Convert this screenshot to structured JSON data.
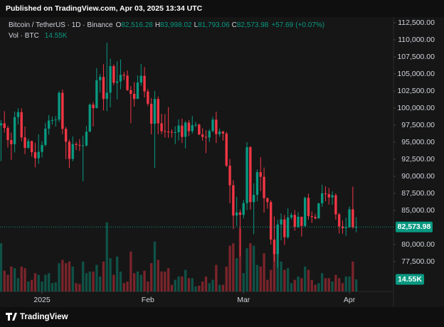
{
  "header": {
    "published": "Published on TradingView.com, Apr 03, 2025 13:34 UTC"
  },
  "footer": {
    "brand": "TradingView"
  },
  "chart_data": {
    "type": "candlestick",
    "legend": {
      "symbol": "Bitcoin / TetherUS · 1D · Binance",
      "fields": [
        {
          "key": "O",
          "value": 82516.28,
          "label": "82,516.28"
        },
        {
          "key": "H",
          "value": 83998.02,
          "label": "83,998.02"
        },
        {
          "key": "L",
          "value": 81793.06,
          "label": "81,793.06"
        },
        {
          "key": "C",
          "value": 82573.98,
          "label": "82,573.98"
        }
      ],
      "change": {
        "value": 57.69,
        "label": "+57.69"
      },
      "change_pct": {
        "value": 0.07,
        "label": "(+0.07%)"
      },
      "volume_title": "Vol · BTC"
    },
    "up_color": "#089981",
    "down_color": "#f23645",
    "xlim": [
      -0.3,
      114.9
    ],
    "xticks": [
      {
        "value": 12,
        "label": "2025"
      },
      {
        "value": 43,
        "label": "Feb"
      },
      {
        "value": 71,
        "label": "Mar"
      },
      {
        "value": 102,
        "label": "Apr"
      }
    ],
    "ylim": [
      73125,
      113333
    ],
    "yticks": [
      {
        "value": 112500,
        "label": "112,500.00"
      },
      {
        "value": 110000,
        "label": "110,000.00"
      },
      {
        "value": 107500,
        "label": "107,500.00"
      },
      {
        "value": 105000,
        "label": "105,000.00"
      },
      {
        "value": 102500,
        "label": "102,500.00"
      },
      {
        "value": 100000,
        "label": "100,000.00"
      },
      {
        "value": 97500,
        "label": "97,500.00"
      },
      {
        "value": 95000,
        "label": "95,000.00"
      },
      {
        "value": 92500,
        "label": "92,500.00"
      },
      {
        "value": 90000,
        "label": "90,000.00"
      },
      {
        "value": 87500,
        "label": "87,500.00"
      },
      {
        "value": 85000,
        "label": "85,000.00"
      },
      {
        "value": 80000,
        "label": "80,000.00"
      },
      {
        "value": 77500,
        "label": "77,500.00"
      }
    ],
    "vlim": [
      0,
      330
    ],
    "last_price": {
      "value": 82573.98,
      "label": "82,573.98"
    },
    "last_volume": {
      "value": 14.55,
      "label": "14.55K"
    },
    "open": [
      97461,
      97763,
      97086,
      95300,
      94700,
      98676,
      99400,
      95700,
      94160,
      95163,
      93530,
      92643,
      93576,
      94591,
      96984,
      98174,
      98236,
      98314,
      102235,
      96954,
      95060,
      92552,
      94726,
      94599,
      94511,
      94516,
      96534,
      100505,
      99987,
      104078,
      104557,
      101331,
      102260,
      106143,
      103706,
      103910,
      104870,
      104746,
      102620,
      102082,
      101335,
      103733,
      104722,
      102429,
      100635,
      97700,
      101328,
      97763,
      96612,
      96554,
      96506,
      96444,
      96462,
      97430,
      95778,
      97869,
      96608,
      97500,
      97569,
      96118,
      95780,
      95671,
      96644,
      98305,
      96181,
      96551,
      96258,
      91552,
      88680,
      84250,
      84708,
      84349,
      86064,
      94270,
      86220,
      87281,
      90606,
      89931,
      86801,
      86222,
      80734,
      78595,
      82932,
      83680,
      81066,
      83969,
      84343,
      82580,
      84075,
      82718,
      86854,
      84167,
      84043,
      83832,
      86054,
      87498,
      87391,
      86909,
      87232,
      84424,
      82648,
      82389,
      82550,
      85159,
      82516.28
    ],
    "high": [
      98233,
      99540,
      97400,
      96416,
      99487,
      99963,
      99963,
      97300,
      95525,
      95220,
      94903,
      96150,
      95150,
      97839,
      98976,
      98734,
      98813,
      102482,
      102724,
      97258,
      95382,
      95836,
      95050,
      95450,
      95940,
      97371,
      100681,
      100873,
      105865,
      104988,
      106422,
      109588,
      107240,
      106394,
      106850,
      107120,
      105286,
      105500,
      103222,
      103783,
      104800,
      106457,
      106012,
      102783,
      101456,
      102500,
      101700,
      99149,
      99120,
      100137,
      96880,
      97323,
      98345,
      98478,
      98119,
      98249,
      98826,
      97972,
      97732,
      97046,
      96753,
      96899,
      98711,
      99475,
      96980,
      96650,
      96500,
      92540,
      89414,
      87000,
      85120,
      86558,
      95000,
      94416,
      88967,
      91000,
      92810,
      91283,
      86897,
      86500,
      84123,
      83617,
      84539,
      84336,
      85309,
      84672,
      85051,
      84756,
      84075,
      87021,
      87453,
      84850,
      84513,
      86094,
      88765,
      88542,
      88292,
      87786,
      87515,
      84624,
      83534,
      83943,
      85579,
      88500,
      83998.02
    ],
    "low": [
      92232,
      96398,
      94202,
      92403,
      93500,
      97600,
      95137,
      93253,
      94014,
      92881,
      91317,
      91800,
      92743,
      94392,
      96100,
      97562,
      97271,
      97926,
      96181,
      92500,
      91203,
      92206,
      93831,
      93711,
      89256,
      94346,
      96500,
      97300,
      99950,
      102277,
      99651,
      99550,
      100119,
      103339,
      101262,
      102750,
      104106,
      102520,
      97777,
      100233,
      101328,
      103278,
      101560,
      100279,
      96150,
      91231,
      96150,
      96155,
      95676,
      95620,
      95688,
      94713,
      95256,
      94876,
      94088,
      95899,
      96252,
      97223,
      96058,
      95205,
      93388,
      95029,
      96415,
      94871,
      95770,
      95227,
      91350,
      86050,
      82256,
      82716,
      78258,
      83824,
      85050,
      85117,
      81500,
      86334,
      87836,
      84667,
      85248,
      80000,
      77459,
      76606,
      80628,
      79939,
      80823,
      83639,
      82017,
      82456,
      81180,
      82569,
      83655,
      83175,
      83675,
      83794,
      85541,
      86346,
      85861,
      85837,
      83646,
      81644,
      81565,
      81279,
      82432,
      82320,
      81793.06
    ],
    "close": [
      97763,
      97086,
      95300,
      94700,
      98676,
      99400,
      95700,
      94160,
      95163,
      93530,
      92643,
      93576,
      94591,
      96984,
      98174,
      98236,
      98314,
      102235,
      96954,
      95060,
      92552,
      94726,
      94599,
      94511,
      94516,
      96534,
      100505,
      99987,
      104078,
      104557,
      101331,
      102260,
      106143,
      103706,
      103910,
      104870,
      104746,
      102620,
      102082,
      101335,
      103733,
      104722,
      102429,
      100635,
      97700,
      101328,
      97763,
      96612,
      96554,
      96506,
      96444,
      96462,
      97430,
      95778,
      97869,
      96608,
      97500,
      97569,
      96118,
      95780,
      95671,
      96644,
      98305,
      96181,
      96551,
      96258,
      91552,
      88680,
      84250,
      84708,
      84349,
      86064,
      94270,
      86220,
      87281,
      90606,
      89931,
      86801,
      86222,
      80734,
      78595,
      82932,
      83680,
      81066,
      83969,
      84343,
      82580,
      84075,
      82718,
      86854,
      84167,
      84043,
      83832,
      86054,
      87498,
      87391,
      86909,
      87232,
      84424,
      82648,
      82389,
      82550,
      85159,
      82516.28,
      82573.98
    ],
    "volume": [
      58,
      25,
      20,
      30,
      28,
      16,
      30,
      28,
      12,
      14,
      22,
      20,
      12,
      20,
      22,
      10,
      11,
      34,
      38,
      34,
      36,
      30,
      10,
      9,
      36,
      22,
      24,
      24,
      32,
      18,
      36,
      83,
      40,
      20,
      42,
      24,
      10,
      12,
      48,
      22,
      24,
      20,
      25,
      12,
      34,
      60,
      38,
      24,
      24,
      28,
      8,
      14,
      18,
      18,
      26,
      16,
      16,
      6,
      7,
      12,
      18,
      10,
      14,
      32,
      8,
      8,
      30,
      55,
      58,
      40,
      76,
      22,
      52,
      58,
      55,
      32,
      30,
      46,
      14,
      26,
      48,
      56,
      36,
      26,
      28,
      10,
      14,
      18,
      16,
      30,
      26,
      14,
      8,
      10,
      22,
      16,
      16,
      12,
      20,
      16,
      10,
      18,
      18,
      36,
      14.55
    ]
  }
}
